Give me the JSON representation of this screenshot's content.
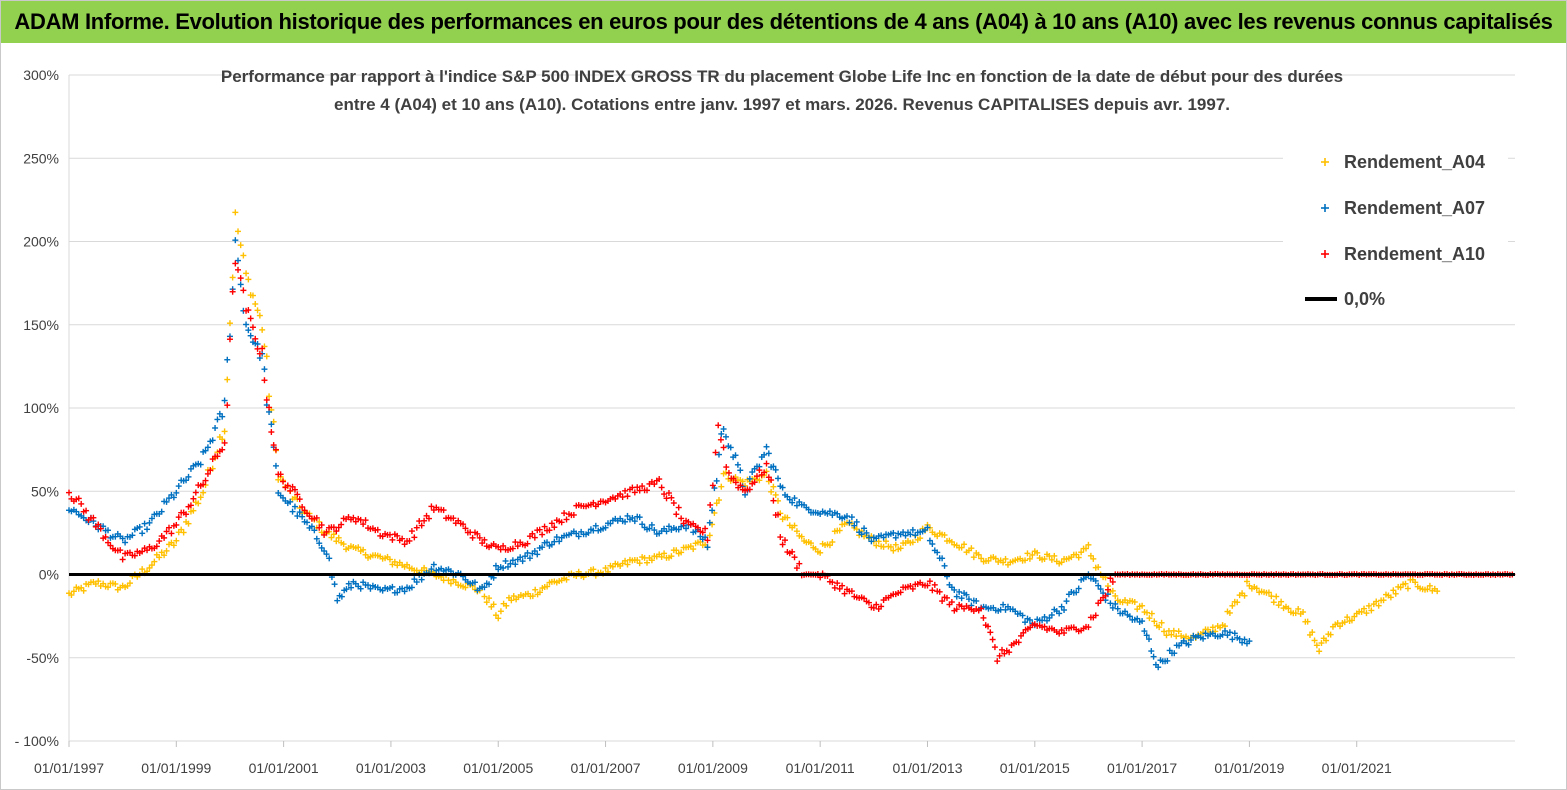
{
  "header": {
    "title": "ADAM Informe. Evolution historique des performances en euros pour des détentions de 4 ans (A04) à 10 ans (A10) avec les revenus connus capitalisés"
  },
  "colors": {
    "banner": "#92d050",
    "A04": "#ffc000",
    "A07": "#0070c0",
    "A10": "#ff0000",
    "zero": "#000000",
    "grid": "#d9d9d9"
  },
  "chart_data": {
    "type": "scatter",
    "subtitle_line1": "Performance par rapport à l'indice S&P 500 INDEX GROSS TR  du placement Globe Life Inc en fonction de la date de début pour des durées",
    "subtitle_line2": "entre 4 (A04) et 10 ans (A10). Cotations entre janv. 1997 et mars. 2026. Revenus CAPITALISES depuis avr. 1997.",
    "ylim": [
      -100,
      300
    ],
    "y_ticks": [
      -100,
      -50,
      0,
      50,
      100,
      150,
      200,
      250,
      300
    ],
    "y_tick_labels": [
      "- 100%",
      "-50%",
      "0%",
      "50%",
      "100%",
      "150%",
      "200%",
      "250%",
      "300%"
    ],
    "xlim": [
      1997.0,
      2023.95
    ],
    "x_ticks": [
      1997,
      1999,
      2001,
      2003,
      2005,
      2007,
      2009,
      2011,
      2013,
      2015,
      2017,
      2019,
      2021
    ],
    "x_tick_labels": [
      "01/01/1997",
      "01/01/1999",
      "01/01/2001",
      "01/01/2003",
      "01/01/2005",
      "01/01/2007",
      "01/01/2009",
      "01/01/2011",
      "01/01/2013",
      "01/01/2015",
      "01/01/2017",
      "01/01/2019",
      "01/01/2021"
    ],
    "grid": "horizontal",
    "legend_position": "top-right",
    "series": [
      {
        "name": "Rendement_A04",
        "color": "#ffc000",
        "x": [
          1997.0,
          1997.5,
          1998.0,
          1998.5,
          1999.0,
          1999.5,
          1999.9,
          2000.1,
          2000.3,
          2000.6,
          2000.9,
          2001.3,
          2001.8,
          2002.3,
          2002.8,
          2003.3,
          2003.8,
          2004.3,
          2004.7,
          2005.0,
          2005.2,
          2005.6,
          2006.0,
          2006.5,
          2007.0,
          2007.5,
          2008.0,
          2008.5,
          2008.9,
          2009.2,
          2009.6,
          2010.0,
          2010.3,
          2010.7,
          2011.0,
          2011.5,
          2012.0,
          2012.5,
          2013.0,
          2013.5,
          2014.0,
          2014.5,
          2015.0,
          2015.5,
          2016.0,
          2016.5,
          2017.0,
          2017.5,
          2018.0,
          2018.5,
          2019.0,
          2019.5,
          2020.0,
          2020.3,
          2020.6,
          2021.0,
          2021.5,
          2022.0,
          2022.5
        ],
        "y": [
          -12,
          -5,
          -8,
          5,
          20,
          50,
          90,
          215,
          180,
          150,
          60,
          40,
          25,
          15,
          10,
          5,
          0,
          -5,
          -10,
          -25,
          -15,
          -12,
          -5,
          0,
          2,
          8,
          10,
          15,
          20,
          60,
          55,
          60,
          35,
          20,
          15,
          30,
          20,
          15,
          28,
          20,
          10,
          8,
          12,
          8,
          15,
          -15,
          -20,
          -35,
          -38,
          -30,
          -5,
          -15,
          -25,
          -45,
          -30,
          -25,
          -15,
          -5,
          -10
        ]
      },
      {
        "name": "Rendement_A07",
        "color": "#0070c0",
        "x": [
          1997.0,
          1997.5,
          1998.0,
          1998.5,
          1999.0,
          1999.5,
          1999.9,
          2000.1,
          2000.3,
          2000.6,
          2000.9,
          2001.3,
          2001.8,
          2002.0,
          2002.3,
          2002.8,
          2003.3,
          2003.8,
          2004.3,
          2004.7,
          2005.0,
          2005.5,
          2006.0,
          2006.5,
          2007.0,
          2007.5,
          2008.0,
          2008.5,
          2008.9,
          2009.2,
          2009.6,
          2010.0,
          2010.3,
          2010.7,
          2011.0,
          2011.5,
          2012.0,
          2012.5,
          2013.0,
          2013.5,
          2014.0,
          2014.5,
          2015.0,
          2015.5,
          2016.0,
          2016.5,
          2017.0,
          2017.3,
          2017.6,
          2018.0,
          2018.5,
          2019.0
        ],
        "y": [
          40,
          30,
          20,
          30,
          50,
          70,
          100,
          200,
          150,
          130,
          50,
          35,
          15,
          -15,
          -5,
          -10,
          -8,
          5,
          0,
          -10,
          5,
          10,
          20,
          25,
          30,
          35,
          25,
          30,
          20,
          90,
          50,
          75,
          50,
          40,
          38,
          35,
          20,
          25,
          25,
          -10,
          -20,
          -20,
          -30,
          -20,
          0,
          -20,
          -30,
          -55,
          -45,
          -38,
          -35,
          -40
        ]
      },
      {
        "name": "Rendement_A10",
        "color": "#ff0000",
        "x": [
          1997.0,
          1997.5,
          1998.0,
          1998.5,
          1999.0,
          1999.5,
          1999.9,
          2000.1,
          2000.3,
          2000.6,
          2000.9,
          2001.3,
          2001.8,
          2002.3,
          2002.8,
          2003.3,
          2003.8,
          2004.3,
          2004.7,
          2005.0,
          2005.5,
          2006.0,
          2006.5,
          2007.0,
          2007.5,
          2008.0,
          2008.5,
          2008.9,
          2009.1,
          2009.3,
          2009.6,
          2010.0,
          2010.3,
          2010.7,
          2011.0,
          2011.5,
          2012.0,
          2012.5,
          2013.0,
          2013.5,
          2014.0,
          2014.3,
          2014.7,
          2015.0,
          2015.5,
          2016.0,
          2016.5,
          2017.0,
          2018.0,
          2019.0,
          2020.0,
          2021.0,
          2022.0,
          2023.0,
          2023.9
        ],
        "y": [
          50,
          30,
          10,
          15,
          30,
          55,
          80,
          190,
          160,
          130,
          60,
          45,
          25,
          35,
          25,
          20,
          40,
          30,
          20,
          15,
          20,
          30,
          40,
          45,
          50,
          55,
          30,
          25,
          90,
          60,
          50,
          65,
          20,
          0,
          0,
          -10,
          -20,
          -10,
          -5,
          -20,
          -20,
          -50,
          -40,
          -30,
          -35,
          -30,
          0,
          0,
          0,
          0,
          0,
          0,
          0,
          0,
          0
        ]
      }
    ],
    "legend": [
      {
        "label": "Rendement_A04",
        "series": "Rendement_A04"
      },
      {
        "label": "Rendement_A07",
        "series": "Rendement_A07"
      },
      {
        "label": "Rendement_A10",
        "series": "Rendement_A10"
      },
      {
        "label": "0,0%",
        "series": "zero"
      }
    ]
  }
}
